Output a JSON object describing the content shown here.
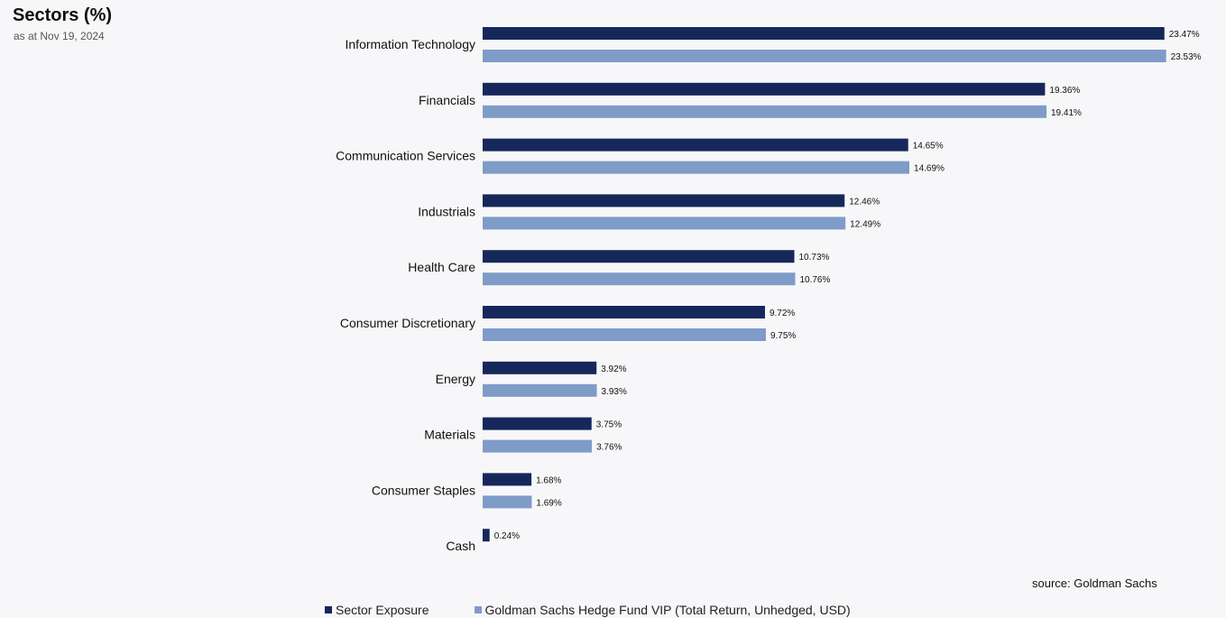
{
  "header": {
    "title": "Sectors (%)",
    "subtitle": "as at Nov 19, 2024"
  },
  "footer": {
    "source": "source: Goldman Sachs"
  },
  "colors": {
    "series1": "#16285a",
    "series2": "#7f9bc8",
    "background": "#f7f7f9"
  },
  "legend": {
    "placement": "bottom-left",
    "items": [
      {
        "label": "Sector Exposure",
        "color": "#16285a"
      },
      {
        "label": "Goldman Sachs Hedge Fund VIP (Total Return, Unhedged, USD)",
        "color": "#7f9bc8"
      }
    ]
  },
  "chart_data": {
    "type": "bar",
    "orientation": "horizontal",
    "title": "Sectors (%)",
    "subtitle": "as at Nov 19, 2024",
    "categories": [
      "Information Technology",
      "Financials",
      "Communication Services",
      "Industrials",
      "Health Care",
      "Consumer Discretionary",
      "Energy",
      "Materials",
      "Consumer Staples",
      "Cash"
    ],
    "series": [
      {
        "name": "Sector Exposure",
        "color": "#16285a",
        "values": [
          23.47,
          19.36,
          14.65,
          12.46,
          10.73,
          9.72,
          3.92,
          3.75,
          1.68,
          0.24
        ],
        "labels": [
          "23.47%",
          "19.36%",
          "14.65%",
          "12.46%",
          "10.73%",
          "9.72%",
          "3.92%",
          "3.75%",
          "1.68%",
          "0.24%"
        ]
      },
      {
        "name": "Goldman Sachs Hedge Fund VIP (Total Return, Unhedged, USD)",
        "color": "#7f9bc8",
        "values": [
          23.53,
          19.41,
          14.69,
          12.49,
          10.76,
          9.75,
          3.93,
          3.76,
          1.69,
          null
        ],
        "labels": [
          "23.53%",
          "19.41%",
          "14.69%",
          "12.49%",
          "10.76%",
          "9.75%",
          "3.93%",
          "3.76%",
          "1.69%",
          null
        ]
      }
    ],
    "unit": "%",
    "grid": false,
    "xlim": [
      0,
      23.53
    ]
  }
}
